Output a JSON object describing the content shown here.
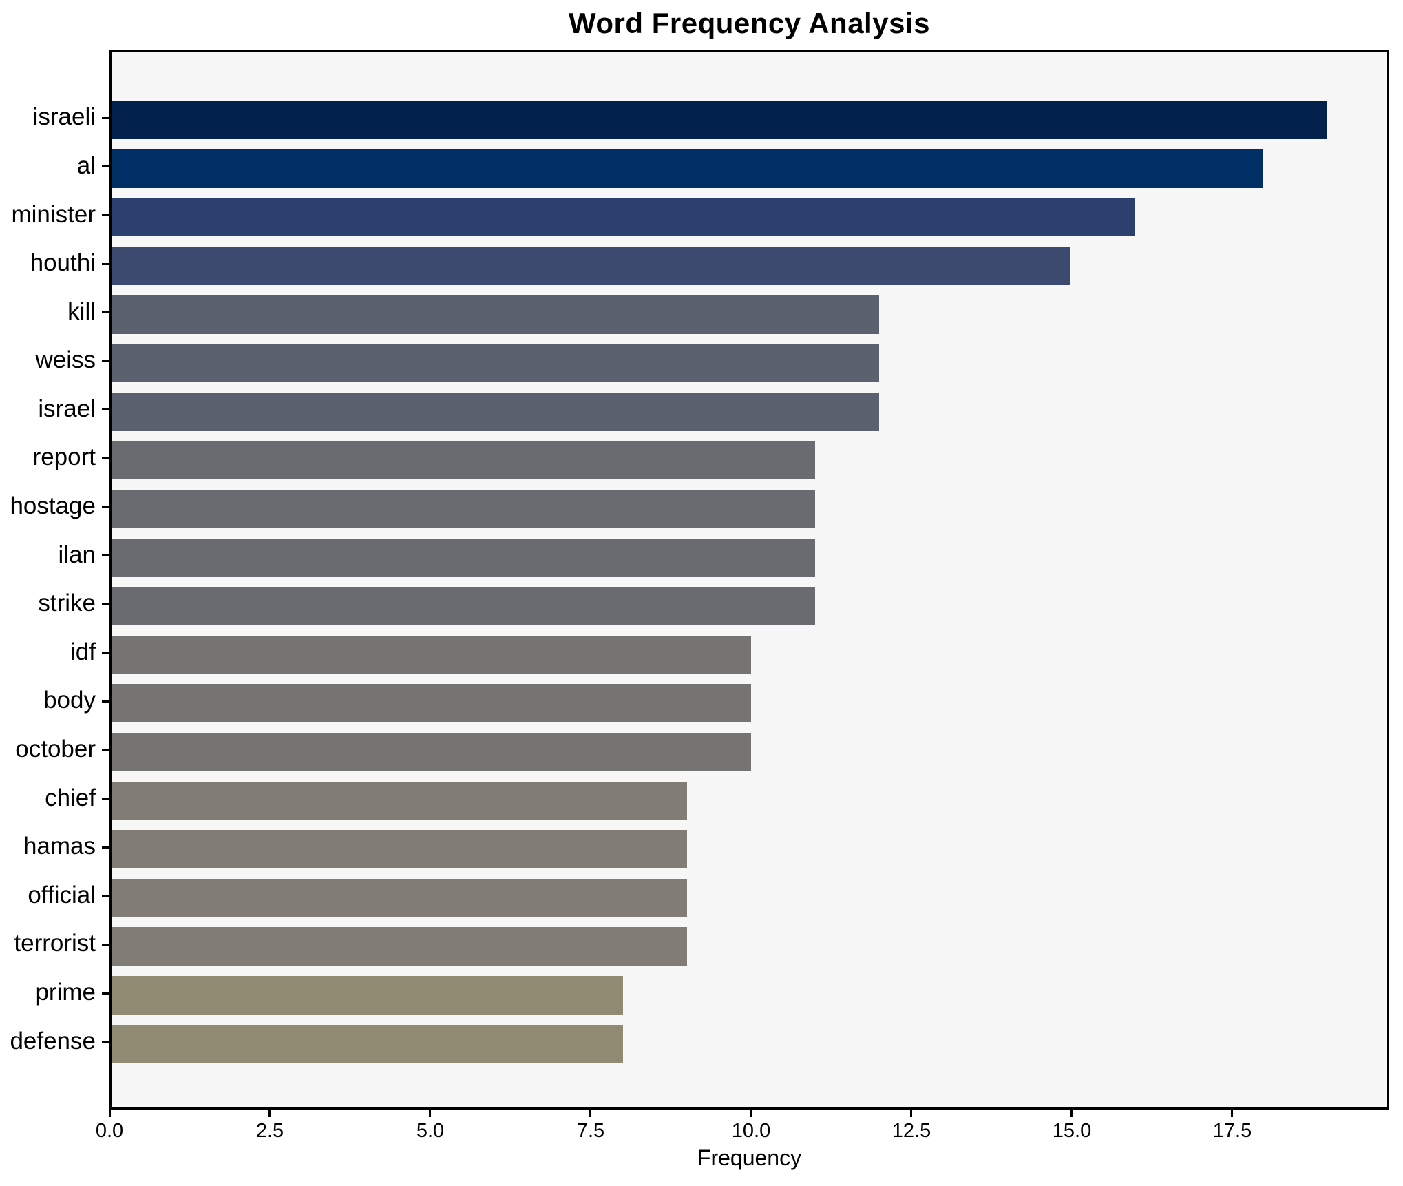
{
  "figure": {
    "title": "Word Frequency Analysis"
  },
  "chart_data": {
    "type": "bar",
    "orientation": "horizontal",
    "title": "Word Frequency Analysis",
    "xlabel": "Frequency",
    "ylabel": "",
    "categories": [
      "israeli",
      "al",
      "minister",
      "houthi",
      "kill",
      "weiss",
      "israel",
      "report",
      "hostage",
      "ilan",
      "strike",
      "idf",
      "body",
      "october",
      "chief",
      "hamas",
      "official",
      "terrorist",
      "prime",
      "defense"
    ],
    "values": [
      19,
      18,
      16,
      15,
      12,
      12,
      12,
      11,
      11,
      11,
      11,
      10,
      10,
      10,
      9,
      9,
      9,
      9,
      8,
      8
    ],
    "bar_colors": [
      "#02224d",
      "#012f66",
      "#2c4070",
      "#3c4a70",
      "#5c6170",
      "#5c6170",
      "#5c6170",
      "#6a6b70",
      "#6a6b70",
      "#6a6b70",
      "#6a6b70",
      "#757473",
      "#757473",
      "#757473",
      "#817d75",
      "#817d75",
      "#817d75",
      "#817d75",
      "#918a72",
      "#918a72"
    ],
    "xlim": [
      0,
      19.95
    ],
    "x_ticks": [
      0,
      2.5,
      5,
      7.5,
      10,
      12.5,
      15,
      17.5
    ],
    "x_tick_labels": [
      "0.0",
      "2.5",
      "5.0",
      "7.5",
      "10.0",
      "12.5",
      "15.0",
      "17.5"
    ],
    "grid": false,
    "legend": null,
    "bar_height_fraction": 0.8,
    "colormap": "cividis-dark-to-tan",
    "plot_background": "#f7f7f7",
    "spine_color": "#000000"
  }
}
